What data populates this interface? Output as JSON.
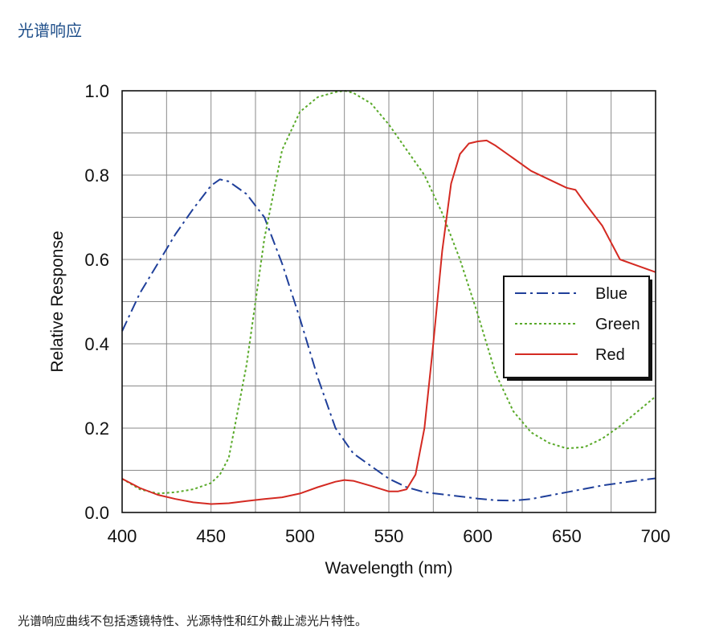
{
  "page": {
    "title": "光谱响应",
    "caption": "光谱响应曲线不包括透镜特性、光源特性和红外截止滤光片特性。"
  },
  "chart_data": {
    "type": "line",
    "xlabel": "Wavelength (nm)",
    "ylabel": "Relative Response",
    "xlim": [
      400,
      700
    ],
    "ylim": [
      0,
      1.0
    ],
    "x_ticks": [
      "400",
      "450",
      "500",
      "550",
      "600",
      "650",
      "700"
    ],
    "y_ticks": [
      "0.0",
      "0.2",
      "0.4",
      "0.6",
      "0.8",
      "1.0"
    ],
    "grid": true,
    "legend_position": "right",
    "series": [
      {
        "name": "Blue",
        "color": "#1f3f9a",
        "dash": "dash-dot",
        "x": [
          400,
          410,
          420,
          430,
          440,
          450,
          455,
          460,
          470,
          480,
          490,
          500,
          510,
          520,
          530,
          540,
          550,
          560,
          570,
          580,
          590,
          600,
          610,
          620,
          630,
          640,
          650,
          660,
          670,
          680,
          690,
          700
        ],
        "y": [
          0.43,
          0.52,
          0.59,
          0.66,
          0.72,
          0.775,
          0.79,
          0.785,
          0.755,
          0.7,
          0.59,
          0.46,
          0.32,
          0.2,
          0.14,
          0.11,
          0.08,
          0.06,
          0.048,
          0.043,
          0.038,
          0.033,
          0.029,
          0.028,
          0.032,
          0.04,
          0.048,
          0.056,
          0.064,
          0.07,
          0.076,
          0.081
        ]
      },
      {
        "name": "Green",
        "color": "#5aaa2a",
        "dash": "dotted",
        "x": [
          400,
          410,
          420,
          430,
          440,
          450,
          455,
          460,
          470,
          480,
          490,
          500,
          510,
          520,
          525,
          530,
          540,
          550,
          560,
          570,
          580,
          590,
          600,
          610,
          620,
          630,
          640,
          650,
          660,
          670,
          680,
          690,
          700
        ],
        "y": [
          0.08,
          0.055,
          0.045,
          0.048,
          0.055,
          0.07,
          0.09,
          0.13,
          0.35,
          0.65,
          0.86,
          0.95,
          0.985,
          0.997,
          1.0,
          0.995,
          0.97,
          0.92,
          0.86,
          0.8,
          0.71,
          0.6,
          0.47,
          0.33,
          0.24,
          0.19,
          0.165,
          0.152,
          0.155,
          0.175,
          0.205,
          0.24,
          0.275
        ]
      },
      {
        "name": "Red",
        "color": "#d42a22",
        "dash": "solid",
        "x": [
          400,
          410,
          420,
          430,
          440,
          450,
          460,
          470,
          480,
          490,
          500,
          510,
          520,
          525,
          530,
          540,
          550,
          555,
          560,
          565,
          570,
          575,
          580,
          585,
          590,
          595,
          600,
          605,
          610,
          620,
          630,
          640,
          650,
          655,
          660,
          670,
          680,
          690,
          700
        ],
        "y": [
          0.08,
          0.058,
          0.042,
          0.032,
          0.024,
          0.02,
          0.022,
          0.027,
          0.032,
          0.036,
          0.045,
          0.06,
          0.073,
          0.077,
          0.075,
          0.063,
          0.05,
          0.05,
          0.055,
          0.09,
          0.2,
          0.4,
          0.62,
          0.78,
          0.85,
          0.875,
          0.88,
          0.882,
          0.87,
          0.84,
          0.81,
          0.79,
          0.77,
          0.765,
          0.735,
          0.68,
          0.6,
          0.585,
          0.57
        ]
      }
    ]
  }
}
